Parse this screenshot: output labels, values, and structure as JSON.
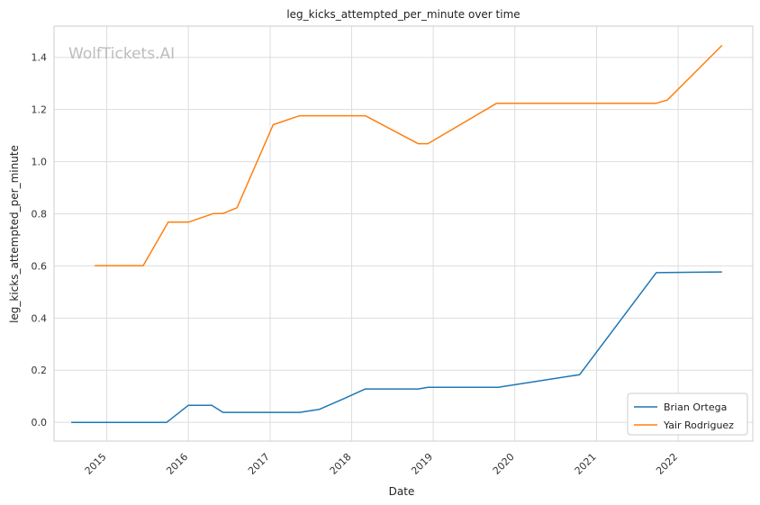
{
  "chart_data": {
    "type": "line",
    "title": "leg_kicks_attempted_per_minute over time",
    "xlabel": "Date",
    "ylabel": "leg_kicks_attempted_per_minute",
    "watermark": "WolfTickets.AI",
    "x_ticks": [
      "2015",
      "2016",
      "2017",
      "2018",
      "2019",
      "2020",
      "2021",
      "2022"
    ],
    "y_ticks": [
      "0.0",
      "0.2",
      "0.4",
      "0.6",
      "0.8",
      "1.0",
      "1.2",
      "1.4"
    ],
    "xlim": [
      "2014-05-10",
      "2022-12-01"
    ],
    "ylim": [
      -0.072,
      1.52
    ],
    "grid": true,
    "legend_position": "bottom-right",
    "series": [
      {
        "name": "Brian Ortega",
        "color": "#1f77b4",
        "points": [
          [
            "2014-07-26",
            0.0
          ],
          [
            "2015-06-06",
            0.0
          ],
          [
            "2015-09-26",
            0.0
          ],
          [
            "2016-01-01",
            0.065
          ],
          [
            "2016-04-15",
            0.065
          ],
          [
            "2016-06-04",
            0.038
          ],
          [
            "2017-05-13",
            0.038
          ],
          [
            "2017-08-10",
            0.05
          ],
          [
            "2017-12-09",
            0.095
          ],
          [
            "2018-03-03",
            0.128
          ],
          [
            "2018-10-25",
            0.128
          ],
          [
            "2018-12-08",
            0.134
          ],
          [
            "2019-10-18",
            0.134
          ],
          [
            "2020-10-17",
            0.183
          ],
          [
            "2021-09-25",
            0.574
          ],
          [
            "2022-07-16",
            0.577
          ]
        ]
      },
      {
        "name": "Yair Rodriguez",
        "color": "#ff7f0e",
        "points": [
          [
            "2014-11-08",
            0.601
          ],
          [
            "2015-06-13",
            0.601
          ],
          [
            "2015-10-03",
            0.768
          ],
          [
            "2016-01-01",
            0.768
          ],
          [
            "2016-04-23",
            0.801
          ],
          [
            "2016-06-04",
            0.801
          ],
          [
            "2016-08-06",
            0.823
          ],
          [
            "2017-01-15",
            1.142
          ],
          [
            "2017-05-13",
            1.176
          ],
          [
            "2018-03-03",
            1.176
          ],
          [
            "2018-10-25",
            1.069
          ],
          [
            "2018-12-08",
            1.069
          ],
          [
            "2019-10-12",
            1.224
          ],
          [
            "2021-09-25",
            1.224
          ],
          [
            "2021-11-13",
            1.236
          ],
          [
            "2022-07-16",
            1.446
          ]
        ]
      }
    ]
  }
}
